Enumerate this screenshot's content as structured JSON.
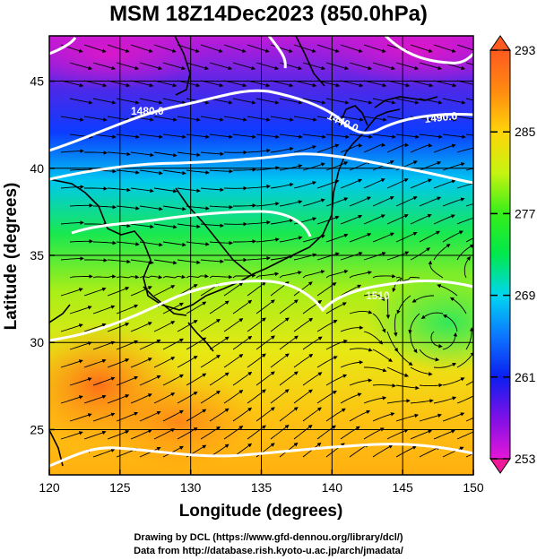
{
  "title": "MSM 18Z14Dec2023 (850.0hPa)",
  "axes": {
    "xlabel": "Longitude (degrees)",
    "ylabel": "Latitude  (degrees)",
    "xticks": [
      "120",
      "125",
      "130",
      "135",
      "140",
      "145",
      "150"
    ],
    "yticks": [
      "25",
      "30",
      "35",
      "40",
      "45"
    ],
    "xlim": [
      120,
      150
    ],
    "ylim": [
      22.4,
      47.6
    ]
  },
  "colorbar": {
    "ticks": [
      "293",
      "285",
      "277",
      "269",
      "261",
      "253"
    ],
    "range": [
      253,
      293
    ]
  },
  "contours": [
    {
      "label": "1480.0"
    },
    {
      "label": "1440.0"
    },
    {
      "label": "1490.0"
    },
    {
      "label": "1510"
    }
  ],
  "footer": {
    "line1": "Drawing by DCL (https://www.gfd-dennou.org/library/dcl/)",
    "line2": "Data from http://database.rish.kyoto-u.ac.jp/arch/jmadata/"
  },
  "colors": {
    "warm": "#ff8a10",
    "cold": "#d10ad0",
    "contour": "#ffffff"
  }
}
